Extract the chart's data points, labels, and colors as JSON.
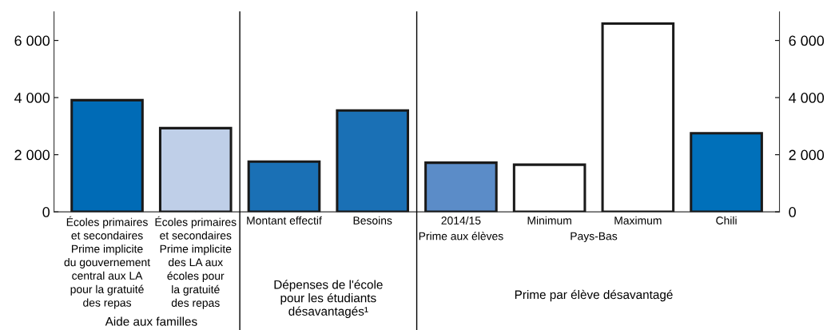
{
  "chart_data": {
    "type": "bar",
    "categories": [
      "Écoles primaires\net secondaires\nPrime implicite\ndu gouvernement\ncentral aux LA\npour la gratuité\ndes repas",
      "Écoles primaires\net secondaires\nPrime implicite\ndes LA aux\nécoles pour\nla gratuité\ndes repas",
      "Montant effectif",
      "Besoins",
      "2014/15",
      "Minimum",
      "Maximum",
      "Chili"
    ],
    "values": [
      3910,
      2930,
      1760,
      3550,
      1720,
      1650,
      6590,
      2750
    ],
    "colors": [
      "#006bb6",
      "#bfcfe8",
      "#1a70b5",
      "#1a70b5",
      "#5b8cc8",
      "#ffffff",
      "#ffffff",
      "#0070ba"
    ],
    "ylim": [
      0,
      7000
    ],
    "yticks": [
      {
        "value": 0,
        "label": "0"
      },
      {
        "value": 2000,
        "label": "2 000"
      },
      {
        "value": 4000,
        "label": "4 000"
      },
      {
        "value": 6000,
        "label": "6 000"
      }
    ],
    "y2lim": [
      0,
      7000
    ],
    "y2ticks": [
      {
        "value": 0,
        "label": "0"
      },
      {
        "value": 2000,
        "label": "2 000"
      },
      {
        "value": 4000,
        "label": "4 000"
      },
      {
        "value": 6000,
        "label": "6 000"
      }
    ],
    "annotations": [
      "Aide aux familles",
      "Dépenses de l'école\npour les étudiants\ndésavantagés¹",
      "Prime aux élèves",
      "Pays-Bas",
      "Prime par élève désavantagé"
    ],
    "grid": false,
    "legend": false
  }
}
